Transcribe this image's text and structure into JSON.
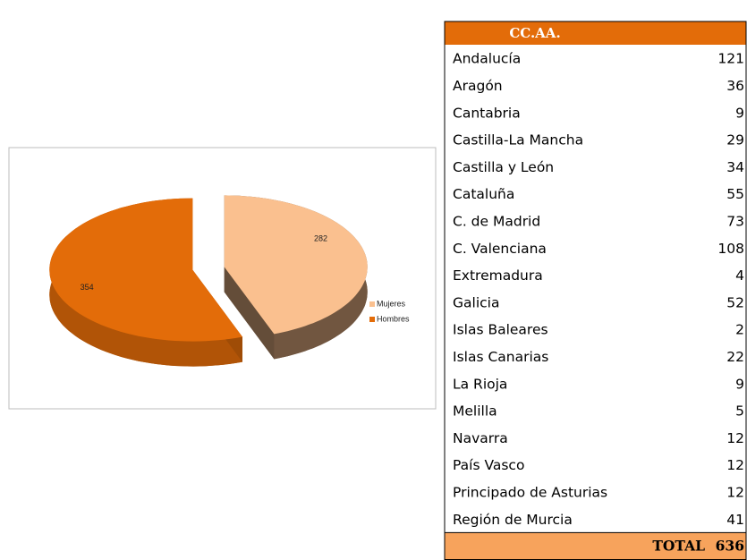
{
  "chart_data": {
    "type": "pie",
    "categories": [
      "Mujeres",
      "Hombres"
    ],
    "values": [
      282,
      354
    ],
    "colors": [
      "#fac08f",
      "#e36c09"
    ],
    "legend": "right"
  },
  "table": {
    "header": "CC.AA.",
    "header_color": "#e36c09",
    "total_color": "#f7a35c",
    "rows": [
      [
        "Andalucía",
        121
      ],
      [
        "Aragón",
        36
      ],
      [
        "Cantabria",
        9
      ],
      [
        "Castilla-La Mancha",
        29
      ],
      [
        "Castilla y León",
        34
      ],
      [
        "Cataluña",
        55
      ],
      [
        "C. de Madrid",
        73
      ],
      [
        "C. Valenciana",
        108
      ],
      [
        "Extremadura",
        4
      ],
      [
        "Galicia",
        52
      ],
      [
        "Islas Baleares",
        2
      ],
      [
        "Islas Canarias",
        22
      ],
      [
        "La Rioja",
        9
      ],
      [
        "Melilla",
        5
      ],
      [
        "Navarra",
        12
      ],
      [
        "País Vasco",
        12
      ],
      [
        "Principado de Asturias",
        12
      ],
      [
        "Región de Murcia",
        41
      ]
    ],
    "total": {
      "label": "TOTAL",
      "value": 636
    }
  }
}
